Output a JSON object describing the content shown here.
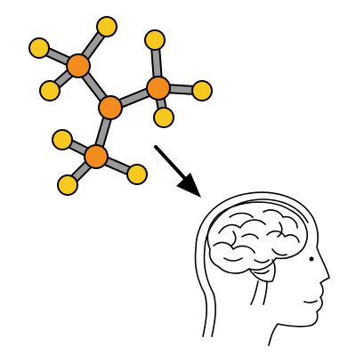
{
  "colors": {
    "background": "#ffffff",
    "carbon": "#f28c1c",
    "hydrogen": "#f7c81e",
    "bond": "#9a9a9a",
    "outline": "#000000",
    "arrow": "#000000"
  },
  "molecule": {
    "atoms": [
      {
        "id": "C1",
        "element": "carbon"
      },
      {
        "id": "C2",
        "element": "carbon"
      },
      {
        "id": "C3",
        "element": "carbon"
      },
      {
        "id": "C4",
        "element": "carbon"
      },
      {
        "id": "H1",
        "element": "hydrogen"
      },
      {
        "id": "H2",
        "element": "hydrogen"
      },
      {
        "id": "H3",
        "element": "hydrogen"
      },
      {
        "id": "H4",
        "element": "hydrogen"
      },
      {
        "id": "H5",
        "element": "hydrogen"
      },
      {
        "id": "H6",
        "element": "hydrogen"
      },
      {
        "id": "H7",
        "element": "hydrogen"
      },
      {
        "id": "H8",
        "element": "hydrogen"
      },
      {
        "id": "H9",
        "element": "hydrogen"
      },
      {
        "id": "H10",
        "element": "hydrogen"
      }
    ],
    "bonds": [
      [
        "C1",
        "C2"
      ],
      [
        "C2",
        "C3"
      ],
      [
        "C2",
        "C4"
      ],
      [
        "C1",
        "H1"
      ],
      [
        "C1",
        "H2"
      ],
      [
        "C1",
        "H3"
      ],
      [
        "C3",
        "H4"
      ],
      [
        "C3",
        "H5"
      ],
      [
        "C3",
        "H6"
      ],
      [
        "C4",
        "H7"
      ],
      [
        "C4",
        "H8"
      ],
      [
        "C4",
        "H9"
      ],
      [
        "C2",
        "H10"
      ]
    ]
  },
  "icons": {
    "arrow": "arrow-down-right-icon",
    "head": "human-head-brain-icon"
  }
}
